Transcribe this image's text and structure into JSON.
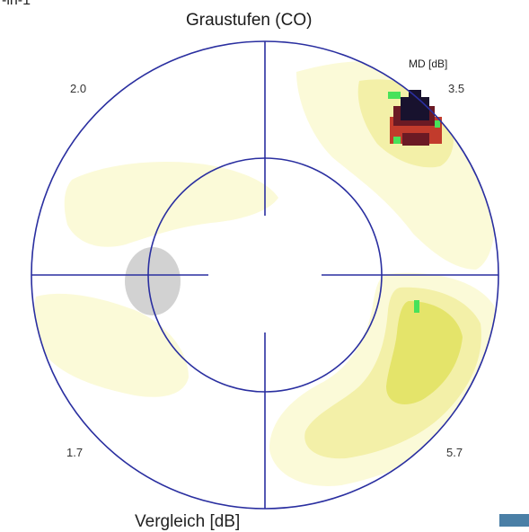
{
  "header_fragment": "-in-1",
  "title": "Graustufen (CO)",
  "legend_label": "MD [dB]",
  "quadrant_values": {
    "top_left": "2.0",
    "top_right": "3.5",
    "bottom_left": "1.7",
    "bottom_right": "5.7"
  },
  "footer_label": "Vergleich [dB]",
  "colors": {
    "axis": "#2a2fa0",
    "blind_spot": "#d2d2d2",
    "level_0": "#fbfad8",
    "level_1": "#f3f0a8",
    "level_2": "#e4e46a",
    "defect_light": "#c23b2c",
    "defect_mid": "#6b1a24",
    "defect_dark": "#18122e",
    "defect_green": "#48e25a"
  }
}
